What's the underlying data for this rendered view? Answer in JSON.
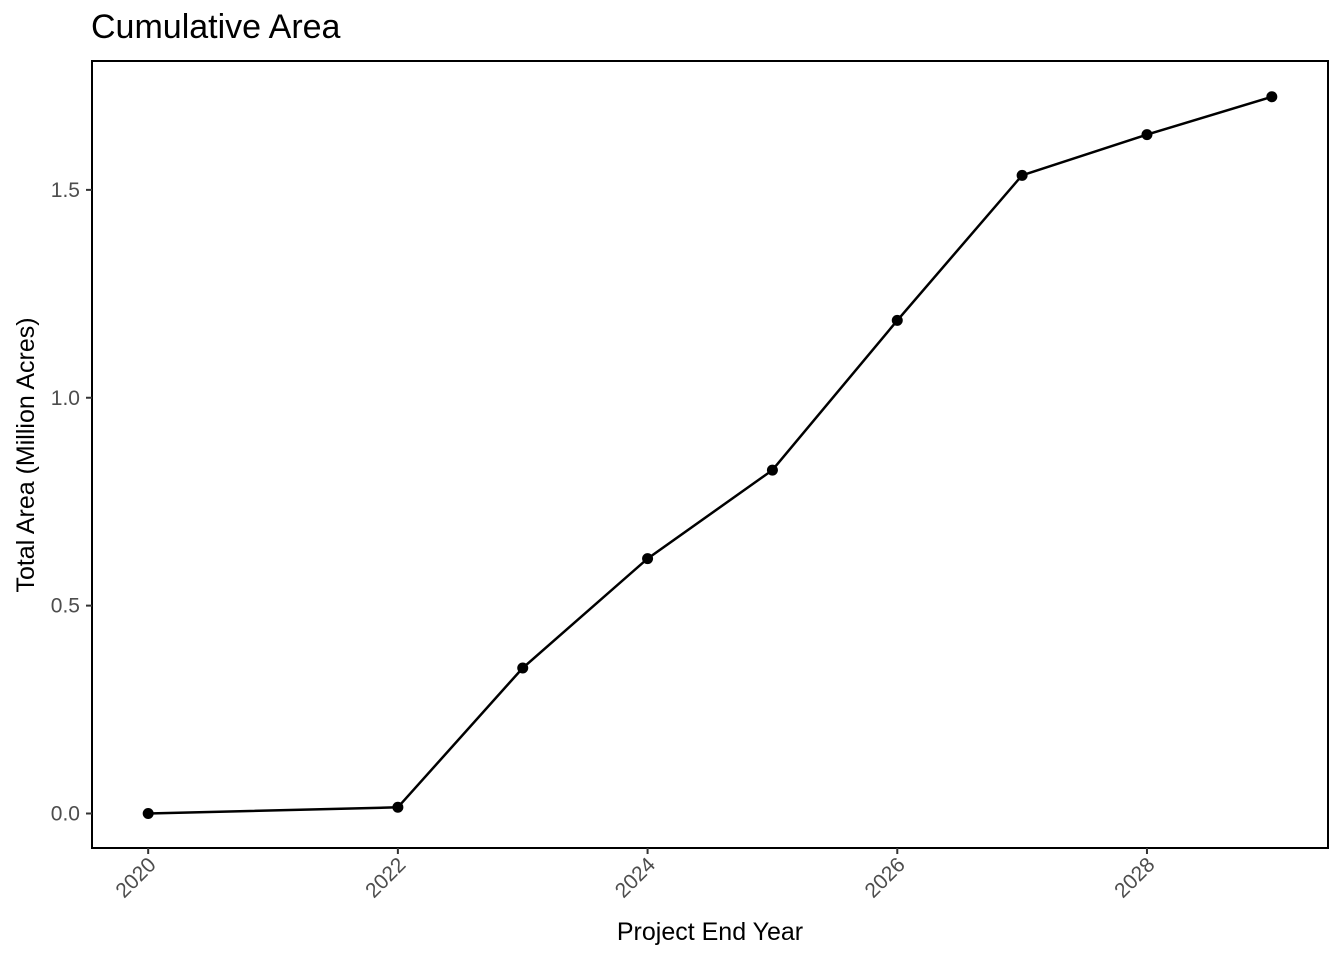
{
  "chart_data": {
    "type": "line",
    "title": "Cumulative Area",
    "xlabel": "Project End Year",
    "ylabel": "Total Area (Million Acres)",
    "x": [
      2020,
      2022,
      2023,
      2024,
      2025,
      2026,
      2027,
      2028,
      2029
    ],
    "y": [
      0.0,
      0.015,
      0.35,
      0.613,
      0.826,
      1.186,
      1.535,
      1.633,
      1.724
    ],
    "xlim": [
      2019.55,
      2029.45
    ],
    "ylim": [
      -0.083,
      1.81
    ],
    "x_ticks": [
      2020,
      2022,
      2024,
      2026,
      2028
    ],
    "x_tick_labels": [
      "2020",
      "2022",
      "2024",
      "2026",
      "2028"
    ],
    "y_ticks": [
      0.0,
      0.5,
      1.0,
      1.5
    ],
    "y_tick_labels": [
      "0.0",
      "0.5",
      "1.0",
      "1.5"
    ],
    "grid": false,
    "line_color": "#000000",
    "point_color": "#000000"
  }
}
